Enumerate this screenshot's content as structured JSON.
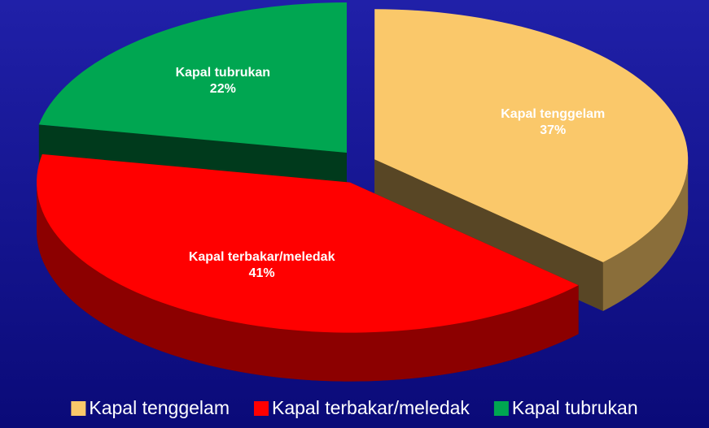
{
  "chart_data": {
    "type": "pie",
    "categories": [
      "Kapal tenggelam",
      "Kapal terbakar/meledak",
      "Kapal tubrukan"
    ],
    "values": [
      37,
      41,
      22
    ],
    "value_labels": [
      "37%",
      "41%",
      "22%"
    ],
    "colors": [
      "#fac86a",
      "#ff0000",
      "#00a651"
    ],
    "legend": "bottom"
  }
}
